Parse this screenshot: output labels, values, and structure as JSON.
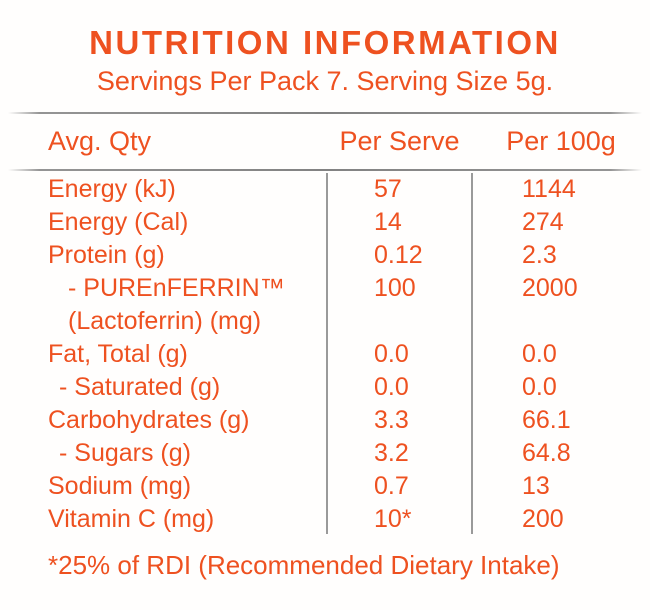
{
  "panel": {
    "title": "NUTRITION INFORMATION",
    "subtitle": "Servings Per Pack 7. Serving Size 5g.",
    "footnote": "*25% of RDI (Recommended Dietary Intake)",
    "accent_color": "#ee5120",
    "divider_color": "#8f8f8f",
    "background_color": "#ffffff"
  },
  "table": {
    "headers": {
      "label": "Avg. Qty",
      "per_serve": "Per Serve",
      "per_100g": "Per 100g"
    },
    "rows": [
      {
        "label": "Energy (kJ)",
        "per_serve": "57",
        "per_100g": "1144"
      },
      {
        "label": "Energy (Cal)",
        "per_serve": "14",
        "per_100g": "274"
      },
      {
        "label": "Protein (g)",
        "per_serve": "0.12",
        "per_100g": "2.3"
      },
      {
        "label": "- PUREnFERRIN™",
        "per_serve": "100",
        "per_100g": "2000"
      },
      {
        "label": "(Lactoferrin) (mg)",
        "per_serve": "",
        "per_100g": ""
      },
      {
        "label": "Fat, Total (g)",
        "per_serve": "0.0",
        "per_100g": "0.0"
      },
      {
        "label": "- Saturated (g)",
        "per_serve": "0.0",
        "per_100g": "0.0"
      },
      {
        "label": "Carbohydrates (g)",
        "per_serve": "3.3",
        "per_100g": "66.1"
      },
      {
        "label": "- Sugars (g)",
        "per_serve": "3.2",
        "per_100g": "64.8"
      },
      {
        "label": "Sodium (mg)",
        "per_serve": "0.7",
        "per_100g": "13"
      },
      {
        "label": "Vitamin C (mg)",
        "per_serve": "10*",
        "per_100g": "200"
      }
    ]
  }
}
